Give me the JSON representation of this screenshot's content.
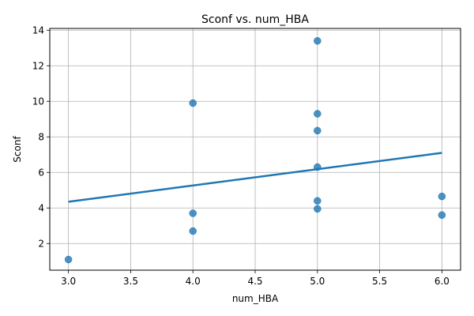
{
  "chart_data": {
    "type": "scatter",
    "title": "Sconf vs. num_HBA",
    "xlabel": "num_HBA",
    "ylabel": "Sconf",
    "xlim": [
      2.85,
      6.15
    ],
    "ylim": [
      0.5,
      14.1
    ],
    "xticks": [
      3.0,
      3.5,
      4.0,
      4.5,
      5.0,
      5.5,
      6.0
    ],
    "xtick_labels": [
      "3.0",
      "3.5",
      "4.0",
      "4.5",
      "5.0",
      "5.5",
      "6.0"
    ],
    "yticks": [
      2,
      4,
      6,
      8,
      10,
      12,
      14
    ],
    "ytick_labels": [
      "2",
      "4",
      "6",
      "8",
      "10",
      "12",
      "14"
    ],
    "grid": true,
    "series": [
      {
        "kind": "points",
        "color": "#1f77b4",
        "points": [
          {
            "x": 3,
            "y": 1.1
          },
          {
            "x": 4,
            "y": 9.9
          },
          {
            "x": 4,
            "y": 3.7
          },
          {
            "x": 4,
            "y": 2.7
          },
          {
            "x": 5,
            "y": 13.4
          },
          {
            "x": 5,
            "y": 9.3
          },
          {
            "x": 5,
            "y": 8.35
          },
          {
            "x": 5,
            "y": 6.3
          },
          {
            "x": 5,
            "y": 4.4
          },
          {
            "x": 5,
            "y": 3.95
          },
          {
            "x": 6,
            "y": 4.65
          },
          {
            "x": 6,
            "y": 3.6
          }
        ]
      },
      {
        "kind": "regression-line",
        "color": "#1f77b4",
        "points": [
          {
            "x": 3,
            "y": 4.35
          },
          {
            "x": 6,
            "y": 7.1
          }
        ]
      }
    ]
  }
}
